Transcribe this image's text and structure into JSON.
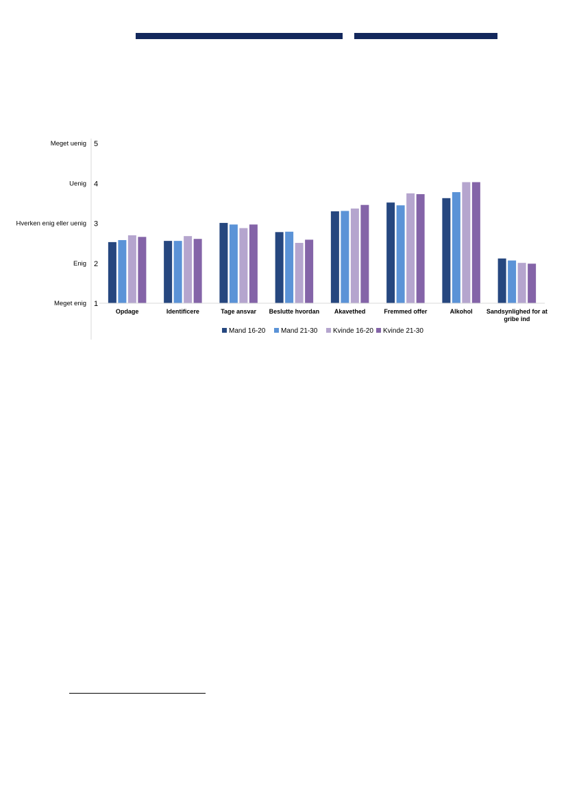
{
  "page": {
    "header_bar_colors": [
      "#13285c",
      "#13285c"
    ]
  },
  "chart_data": {
    "type": "bar",
    "title": "",
    "xlabel": "",
    "ylabel": "",
    "ylim": [
      1,
      5
    ],
    "y_ticks": [
      1,
      2,
      3,
      4,
      5
    ],
    "y_category_labels": [
      "Meget enig",
      "Enig",
      "Hverken enig eller uenig",
      "Uenig",
      "Meget uenig"
    ],
    "categories": [
      "Opdage",
      "Identificere",
      "Tage ansvar",
      "Beslutte hvordan",
      "Akavethed",
      "Fremmed offer",
      "Alkohol",
      "Sandsynlighed for at gribe ind"
    ],
    "series": [
      {
        "name": "Mand 16-20",
        "color": "#26477f",
        "values": [
          2.53,
          2.56,
          3.01,
          2.78,
          3.3,
          3.52,
          3.63,
          2.12
        ]
      },
      {
        "name": "Mand 21-30",
        "color": "#5b93d7",
        "values": [
          2.58,
          2.56,
          2.97,
          2.79,
          3.31,
          3.45,
          3.78,
          2.07
        ]
      },
      {
        "name": "Kvinde 16-20",
        "color": "#b5a5ce",
        "values": [
          2.7,
          2.68,
          2.88,
          2.51,
          3.37,
          3.75,
          4.03,
          2.01
        ]
      },
      {
        "name": "Kvinde 21-30",
        "color": "#8464a8",
        "values": [
          2.66,
          2.61,
          2.97,
          2.59,
          3.46,
          3.73,
          4.03,
          1.99
        ]
      }
    ],
    "grid": false,
    "legend_position": "bottom"
  }
}
